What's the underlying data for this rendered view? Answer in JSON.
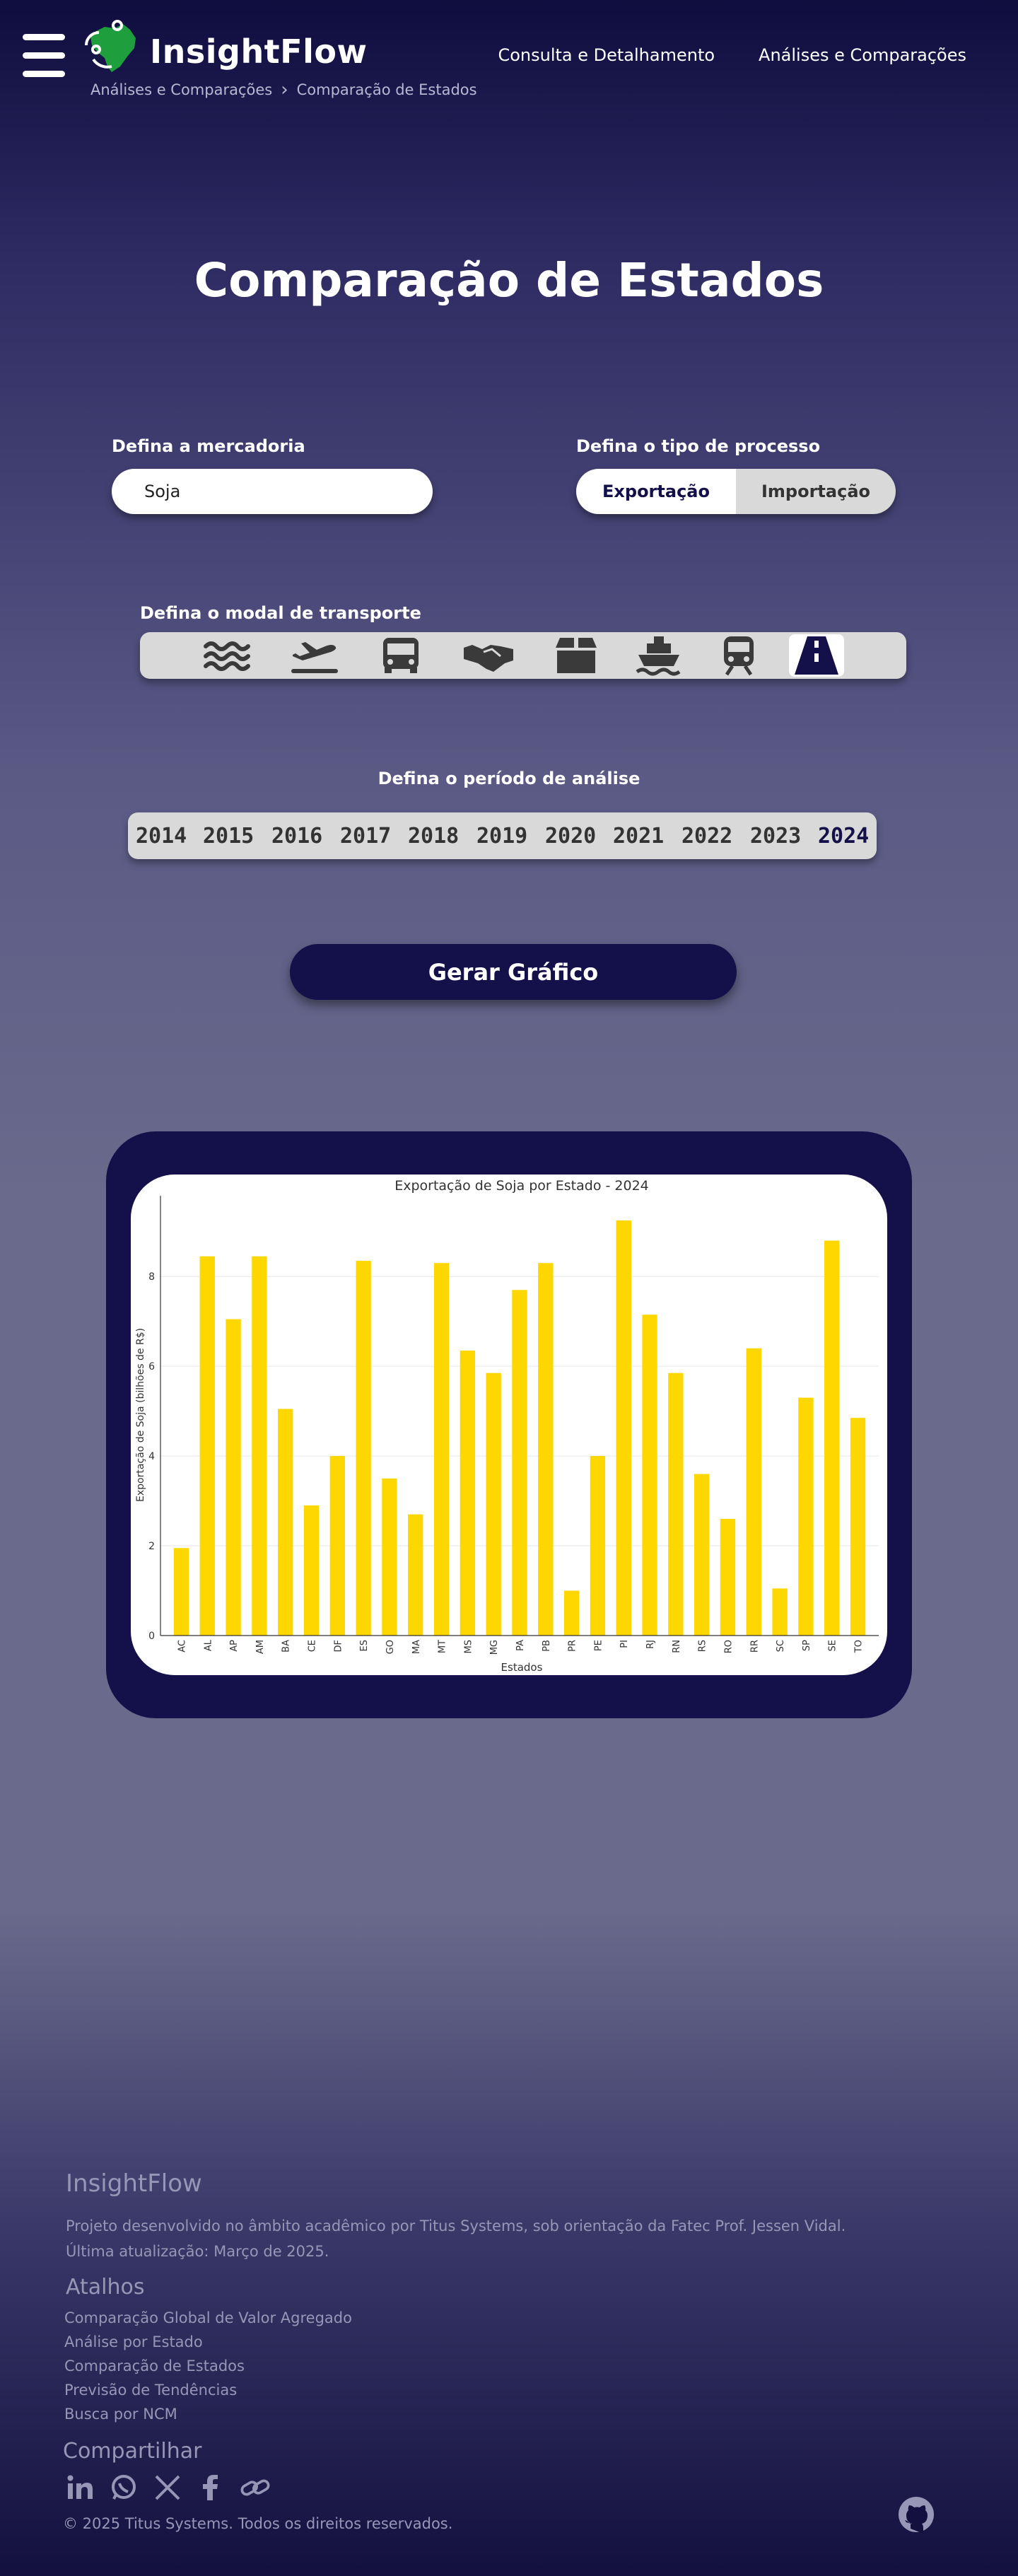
{
  "header": {
    "brand": "InsightFlow",
    "breadcrumb": [
      "Análises e Comparações",
      "Comparação de Estados"
    ],
    "nav": [
      "Consulta e Detalhamento",
      "Análises e Comparações"
    ],
    "icons": [
      "menu-icon",
      "brazil-map-logo-icon",
      "chevron-right-icon"
    ]
  },
  "main": {
    "title": "Comparação de Estados",
    "merchandise": {
      "label": "Defina a mercadoria",
      "value": "Soja"
    },
    "process": {
      "label": "Defina o tipo de processo",
      "options": [
        "Exportação",
        "Importação"
      ],
      "selected": "Exportação"
    },
    "modal": {
      "label": "Defina o modal de transporte",
      "icons": [
        "waves-icon",
        "airplane-icon",
        "bus-icon",
        "handshake-icon",
        "box-icon",
        "ship-icon",
        "train-icon",
        "road-icon"
      ],
      "selected": "road-icon"
    },
    "period": {
      "label": "Defina o período de análise",
      "years": [
        "2014",
        "2015",
        "2016",
        "2017",
        "2018",
        "2019",
        "2020",
        "2021",
        "2022",
        "2023",
        "2024"
      ],
      "selected": "2024"
    },
    "generate_button": "Gerar Gráfico"
  },
  "chart_data": {
    "type": "bar",
    "title": "Exportação de Soja por Estado - 2024",
    "xlabel": "Estados",
    "ylabel": "Exportação de Soja (bilhões de R$)",
    "categories": [
      "AC",
      "AL",
      "AP",
      "AM",
      "BA",
      "CE",
      "DF",
      "ES",
      "GO",
      "MA",
      "MT",
      "MS",
      "MG",
      "PA",
      "PB",
      "PR",
      "PE",
      "PI",
      "RJ",
      "RN",
      "RS",
      "RO",
      "RR",
      "SC",
      "SP",
      "SE",
      "TO"
    ],
    "values": [
      1.95,
      8.45,
      7.05,
      8.45,
      5.05,
      2.9,
      4.0,
      8.35,
      3.5,
      2.7,
      8.3,
      6.35,
      5.85,
      7.7,
      8.3,
      1.0,
      4.0,
      9.25,
      7.15,
      5.85,
      3.6,
      2.6,
      6.4,
      1.05,
      5.3,
      8.8,
      4.85
    ],
    "ylim": [
      0,
      9.8
    ],
    "yticks": [
      0,
      2,
      4,
      6,
      8
    ],
    "grid": true,
    "bar_color": "#FFD700"
  },
  "footer": {
    "title": "InsightFlow",
    "description": "Projeto desenvolvido no âmbito acadêmico por Titus Systems, sob orientação da Fatec Prof. Jessen Vidal.",
    "updated": "Última atualização: Março de 2025.",
    "shortcuts_title": "Atalhos",
    "shortcuts": [
      "Comparação Global de Valor Agregado",
      "Análise por Estado",
      "Comparação de Estados",
      "Previsão de Tendências",
      "Busca por NCM"
    ],
    "share_title": "Compartilhar",
    "share_icons": [
      "linkedin-icon",
      "whatsapp-icon",
      "x-icon",
      "facebook-icon",
      "link-icon"
    ],
    "copyright": "© 2025 Titus Systems. Todos os direitos reservados.",
    "github_icon": "github-icon"
  },
  "colors": {
    "primary": "#13104a",
    "accent": "#FFD700",
    "footer_text": "#9896b6"
  }
}
